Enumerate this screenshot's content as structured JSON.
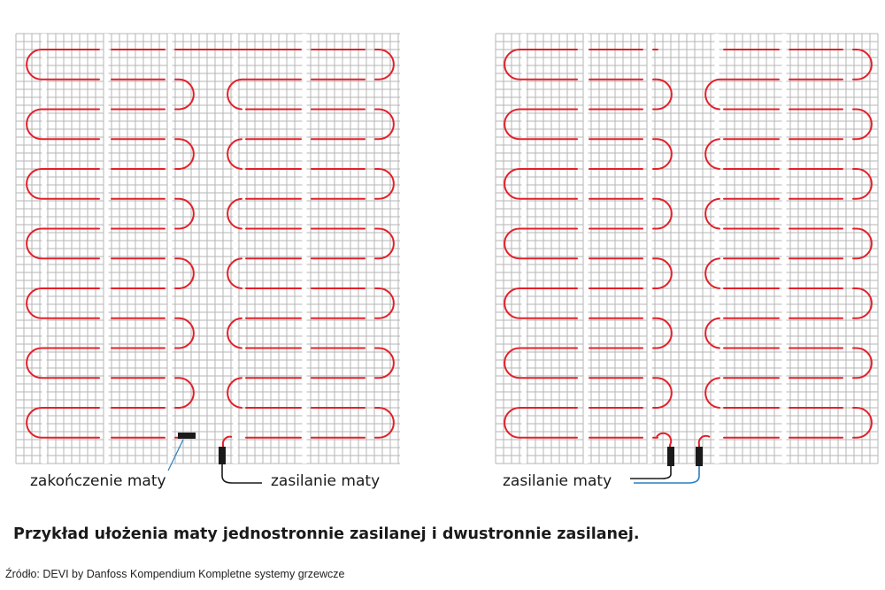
{
  "diagrams": [
    {
      "label_end": "zakończenie maty",
      "label_supply": "zasilanie maty"
    },
    {
      "label_supply": "zasilanie maty"
    }
  ],
  "caption": "Przykład ułożenia maty jednostronnie zasilanej i dwustronnie zasilanej.",
  "source": "Źródło: DEVI by Danfoss Kompendium Kompletne systemy grzewcze",
  "colors": {
    "cable": "#e3202a",
    "mesh": "#b5b5b5",
    "strip": "#ffffff",
    "supply_cable": "#1a1a1a",
    "cold_lead": "#2b7fc0",
    "text": "#1a1a1a"
  }
}
